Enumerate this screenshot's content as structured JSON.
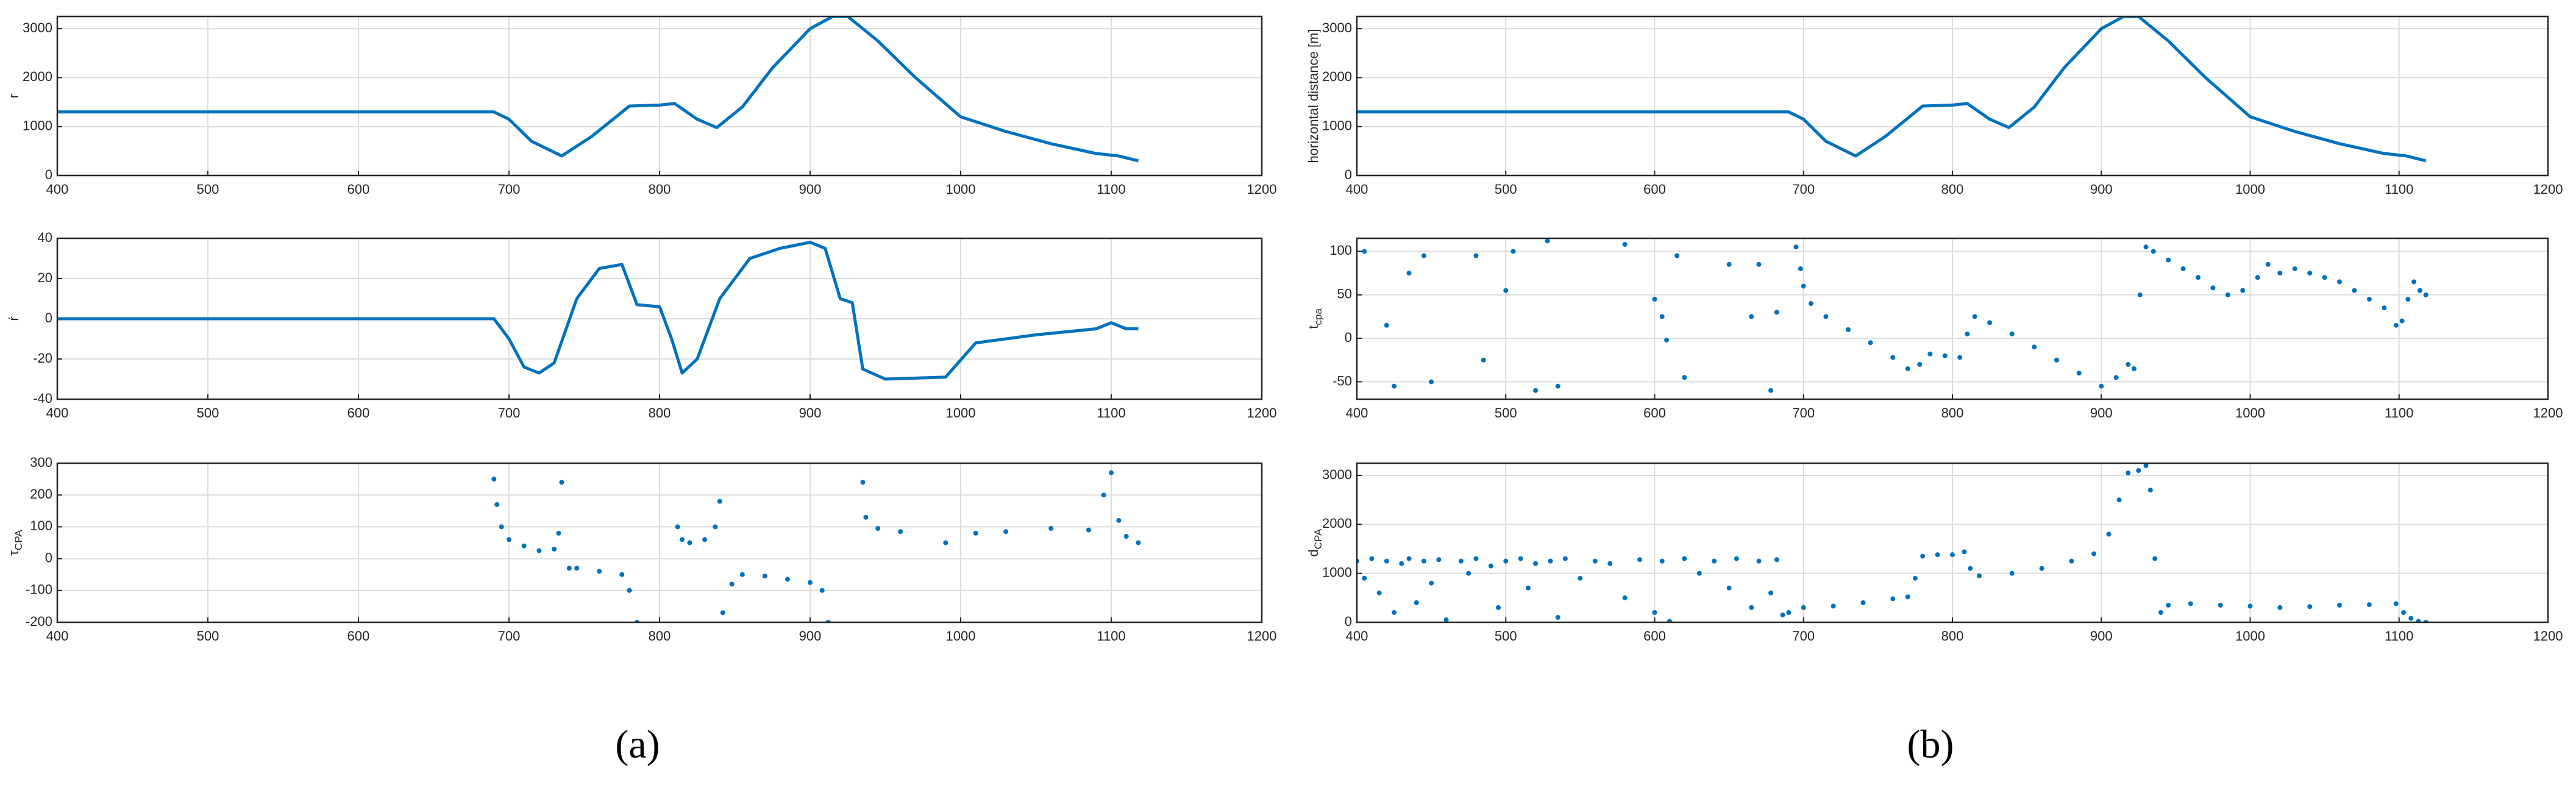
{
  "panel_labels": [
    "(a)",
    "(b)"
  ],
  "chart_data": [
    {
      "type": "line",
      "ylabel": "r",
      "color": "#0072bd",
      "grid": true,
      "xlim": [
        400,
        1200
      ],
      "xticks": [
        400,
        500,
        600,
        700,
        800,
        900,
        1000,
        1100,
        1200
      ],
      "ylim": [
        0,
        3250
      ],
      "yticks": [
        0,
        1000,
        2000,
        3000
      ],
      "x": [
        400,
        690,
        700,
        715,
        735,
        755,
        780,
        800,
        810,
        825,
        838,
        855,
        875,
        900,
        915,
        925,
        945,
        970,
        1000,
        1030,
        1060,
        1090,
        1105,
        1118
      ],
      "values": [
        1300,
        1300,
        1150,
        700,
        400,
        800,
        1420,
        1440,
        1470,
        1150,
        980,
        1400,
        2200,
        3000,
        3250,
        3250,
        2750,
        2000,
        1200,
        900,
        650,
        450,
        400,
        300
      ]
    },
    {
      "type": "line",
      "ylabel": "ṙ",
      "color": "#0072bd",
      "grid": true,
      "xlim": [
        400,
        1200
      ],
      "xticks": [
        400,
        500,
        600,
        700,
        800,
        900,
        1000,
        1100,
        1200
      ],
      "ylim": [
        -40,
        40
      ],
      "yticks": [
        -40,
        -20,
        0,
        20,
        40
      ],
      "x": [
        400,
        690,
        700,
        710,
        720,
        730,
        745,
        760,
        775,
        785,
        800,
        808,
        815,
        825,
        840,
        860,
        880,
        900,
        910,
        920,
        928,
        935,
        950,
        990,
        1010,
        1050,
        1090,
        1100,
        1110,
        1118
      ],
      "values": [
        0,
        0,
        -10,
        -24,
        -27,
        -22,
        10,
        25,
        27,
        7,
        6,
        -10,
        -27,
        -20,
        10,
        30,
        35,
        38,
        35,
        10,
        8,
        -25,
        -30,
        -29,
        -12,
        -8,
        -5,
        -2,
        -5,
        -5
      ]
    },
    {
      "type": "scatter",
      "ylabel": "τ",
      "ylabel_sub": "CPA",
      "color": "#0072bd",
      "grid": true,
      "xlim": [
        400,
        1200
      ],
      "xticks": [
        400,
        500,
        600,
        700,
        800,
        900,
        1000,
        1100,
        1200
      ],
      "ylim": [
        -200,
        300
      ],
      "yticks": [
        -200,
        -100,
        0,
        100,
        200,
        300
      ],
      "x": [
        690,
        692,
        695,
        700,
        710,
        720,
        730,
        733,
        735,
        740,
        745,
        760,
        775,
        780,
        785,
        812,
        815,
        820,
        830,
        837,
        840,
        842,
        848,
        855,
        870,
        885,
        900,
        908,
        912,
        935,
        937,
        945,
        960,
        990,
        1010,
        1030,
        1060,
        1085,
        1095,
        1100,
        1105,
        1110,
        1118
      ],
      "values": [
        250,
        170,
        100,
        60,
        40,
        25,
        30,
        80,
        240,
        -30,
        -30,
        -40,
        -50,
        -100,
        -200,
        100,
        60,
        50,
        60,
        100,
        180,
        -170,
        -80,
        -50,
        -55,
        -65,
        -75,
        -100,
        -200,
        240,
        130,
        95,
        85,
        50,
        80,
        85,
        95,
        90,
        200,
        270,
        120,
        70,
        50
      ]
    },
    {
      "type": "line",
      "ylabel": "horizontal distance [m]",
      "color": "#0072bd",
      "grid": true,
      "xlim": [
        400,
        1200
      ],
      "xticks": [
        400,
        500,
        600,
        700,
        800,
        900,
        1000,
        1100,
        1200
      ],
      "ylim": [
        0,
        3250
      ],
      "yticks": [
        0,
        1000,
        2000,
        3000
      ],
      "x": [
        400,
        690,
        700,
        715,
        735,
        755,
        780,
        800,
        810,
        825,
        838,
        855,
        875,
        900,
        915,
        925,
        945,
        970,
        1000,
        1030,
        1060,
        1090,
        1105,
        1118
      ],
      "values": [
        1300,
        1300,
        1150,
        700,
        400,
        800,
        1420,
        1440,
        1470,
        1150,
        980,
        1400,
        2200,
        3000,
        3250,
        3250,
        2750,
        2000,
        1200,
        900,
        650,
        450,
        400,
        300
      ]
    },
    {
      "type": "scatter",
      "ylabel": "t",
      "ylabel_sub": "cpa",
      "color": "#0072bd",
      "grid": true,
      "xlim": [
        400,
        1200
      ],
      "xticks": [
        400,
        500,
        600,
        700,
        800,
        900,
        1000,
        1100,
        1200
      ],
      "ylim": [
        -70,
        115
      ],
      "yticks": [
        -50,
        0,
        50,
        100
      ],
      "x": [
        405,
        420,
        425,
        435,
        445,
        450,
        480,
        485,
        500,
        505,
        520,
        528,
        535,
        580,
        600,
        605,
        608,
        615,
        620,
        650,
        665,
        670,
        678,
        682,
        695,
        698,
        700,
        705,
        715,
        730,
        745,
        760,
        770,
        778,
        785,
        795,
        805,
        810,
        815,
        825,
        840,
        855,
        870,
        885,
        900,
        910,
        918,
        922,
        926,
        930,
        935,
        945,
        955,
        965,
        975,
        985,
        995,
        1005,
        1012,
        1020,
        1030,
        1040,
        1050,
        1060,
        1070,
        1080,
        1090,
        1098,
        1102,
        1106,
        1110,
        1114,
        1118
      ],
      "values": [
        100,
        15,
        -55,
        75,
        95,
        -50,
        95,
        -25,
        55,
        100,
        -60,
        112,
        -55,
        108,
        45,
        25,
        -2,
        95,
        -45,
        85,
        25,
        85,
        -60,
        30,
        105,
        80,
        60,
        40,
        25,
        10,
        -5,
        -22,
        -35,
        -30,
        -18,
        -20,
        -22,
        5,
        25,
        18,
        5,
        -10,
        -25,
        -40,
        -55,
        -45,
        -30,
        -35,
        50,
        105,
        100,
        90,
        80,
        70,
        58,
        50,
        55,
        70,
        85,
        75,
        80,
        75,
        70,
        65,
        55,
        45,
        35,
        15,
        20,
        45,
        65,
        55,
        50
      ]
    },
    {
      "type": "scatter",
      "ylabel": "d",
      "ylabel_sub": "CPA",
      "color": "#0072bd",
      "grid": true,
      "xlim": [
        400,
        1200
      ],
      "xticks": [
        400,
        500,
        600,
        700,
        800,
        900,
        1000,
        1100,
        1200
      ],
      "ylim": [
        0,
        3250
      ],
      "yticks": [
        0,
        1000,
        2000,
        3000
      ],
      "x": [
        400,
        405,
        410,
        415,
        420,
        425,
        430,
        435,
        440,
        445,
        450,
        455,
        460,
        470,
        475,
        480,
        490,
        495,
        500,
        510,
        515,
        520,
        530,
        535,
        540,
        550,
        560,
        570,
        580,
        590,
        600,
        605,
        610,
        620,
        630,
        640,
        650,
        655,
        665,
        670,
        678,
        682,
        686,
        690,
        700,
        720,
        740,
        760,
        770,
        775,
        780,
        790,
        800,
        808,
        812,
        818,
        840,
        860,
        880,
        895,
        905,
        912,
        918,
        925,
        930,
        933,
        936,
        940,
        945,
        960,
        980,
        1000,
        1020,
        1040,
        1060,
        1080,
        1098,
        1103,
        1108,
        1113,
        1118
      ],
      "values": [
        1250,
        900,
        1300,
        600,
        1250,
        200,
        1200,
        1300,
        400,
        1250,
        800,
        1280,
        50,
        1250,
        1000,
        1300,
        1150,
        300,
        1250,
        1300,
        700,
        1200,
        1250,
        100,
        1300,
        900,
        1250,
        1200,
        500,
        1280,
        200,
        1250,
        20,
        1300,
        1000,
        1250,
        700,
        1300,
        300,
        1250,
        600,
        1280,
        150,
        200,
        300,
        330,
        400,
        480,
        520,
        900,
        1350,
        1380,
        1380,
        1440,
        1100,
        950,
        1000,
        1100,
        1250,
        1400,
        1800,
        2500,
        3050,
        3100,
        3200,
        2700,
        1300,
        200,
        350,
        380,
        350,
        330,
        300,
        320,
        350,
        360,
        380,
        200,
        80,
        20,
        0
      ]
    }
  ]
}
